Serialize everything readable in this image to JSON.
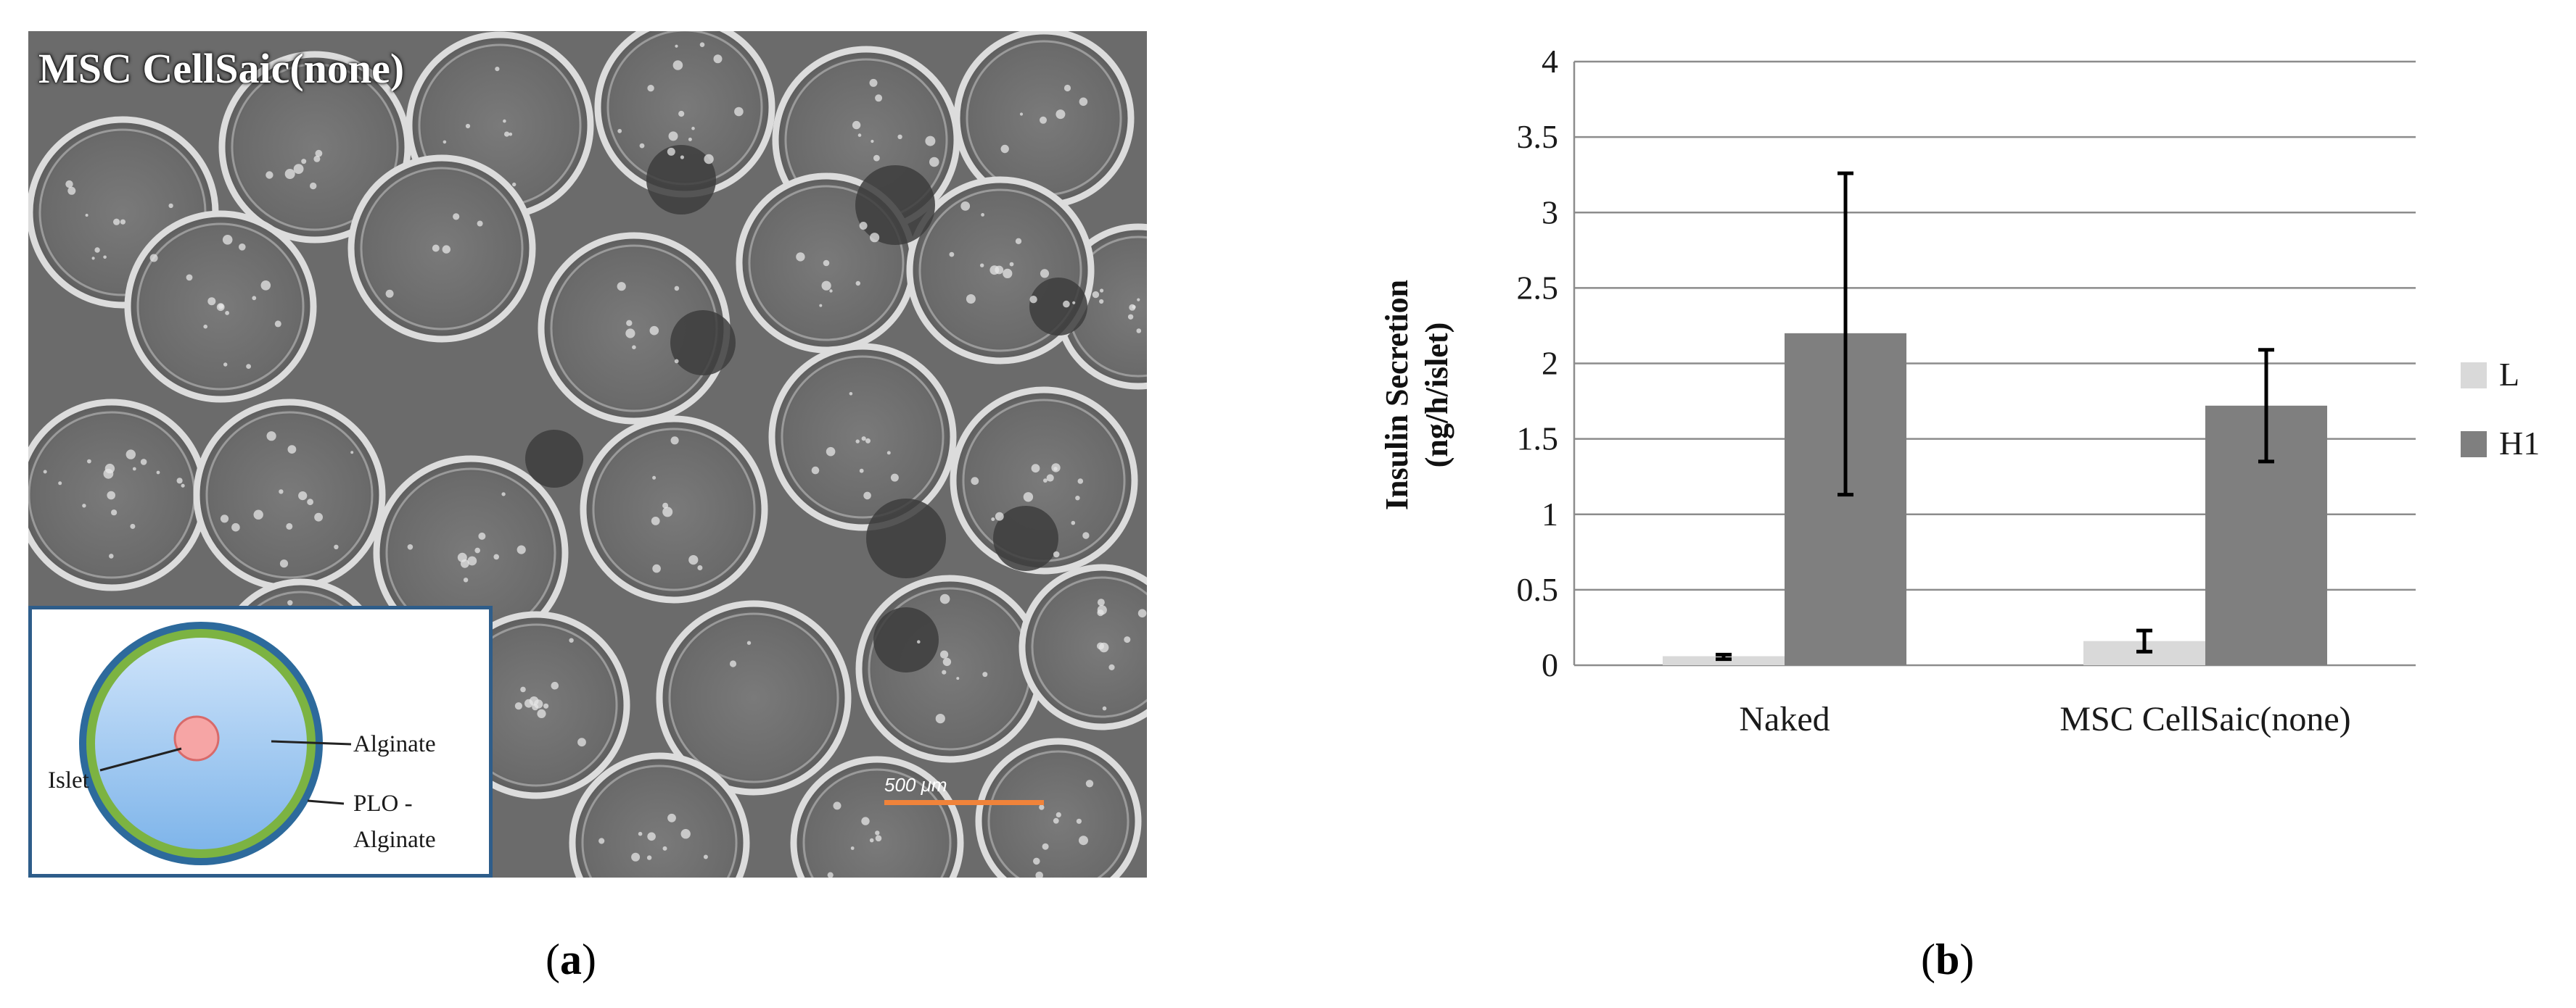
{
  "panel_a": {
    "overlay_label": "MSC CellSaic(none)",
    "inset_labels": {
      "islet": "Islet",
      "alginate": "Alginate",
      "plo_line1": "PLO -",
      "plo_line2": "Alginate"
    },
    "scale_bar_label": "500 μm",
    "caption_letter": "a",
    "colors": {
      "inset_border": "#2e5d8a",
      "outer_ring": "#2d6a9c",
      "plo_ring": "#7cb342",
      "core": "#9cc8f2",
      "islet": "#f6a5a5",
      "scale_bar": "#f0833a"
    }
  },
  "panel_b": {
    "caption_letter": "b"
  },
  "chart_data": {
    "type": "bar",
    "categories": [
      "Naked",
      "MSC CellSaic(none)"
    ],
    "series": [
      {
        "name": "L",
        "color": "#d9d9d9",
        "values": [
          0.06,
          0.16
        ],
        "error_low": [
          0.04,
          0.09
        ],
        "error_high": [
          0.07,
          0.23
        ]
      },
      {
        "name": "H1",
        "color": "#7f7f7f",
        "values": [
          2.2,
          1.72
        ],
        "error_low": [
          1.13,
          1.35
        ],
        "error_high": [
          3.26,
          2.09
        ]
      }
    ],
    "ylabel_line1": "Insulin Secretion",
    "ylabel_line2": "(ng/h/islet)",
    "xlabel": "",
    "ylim": [
      0,
      4
    ],
    "yticks": [
      "0",
      "0.5",
      "1",
      "1.5",
      "2",
      "2.5",
      "3",
      "3.5",
      "4"
    ],
    "grid": true,
    "legend_position": "right"
  }
}
